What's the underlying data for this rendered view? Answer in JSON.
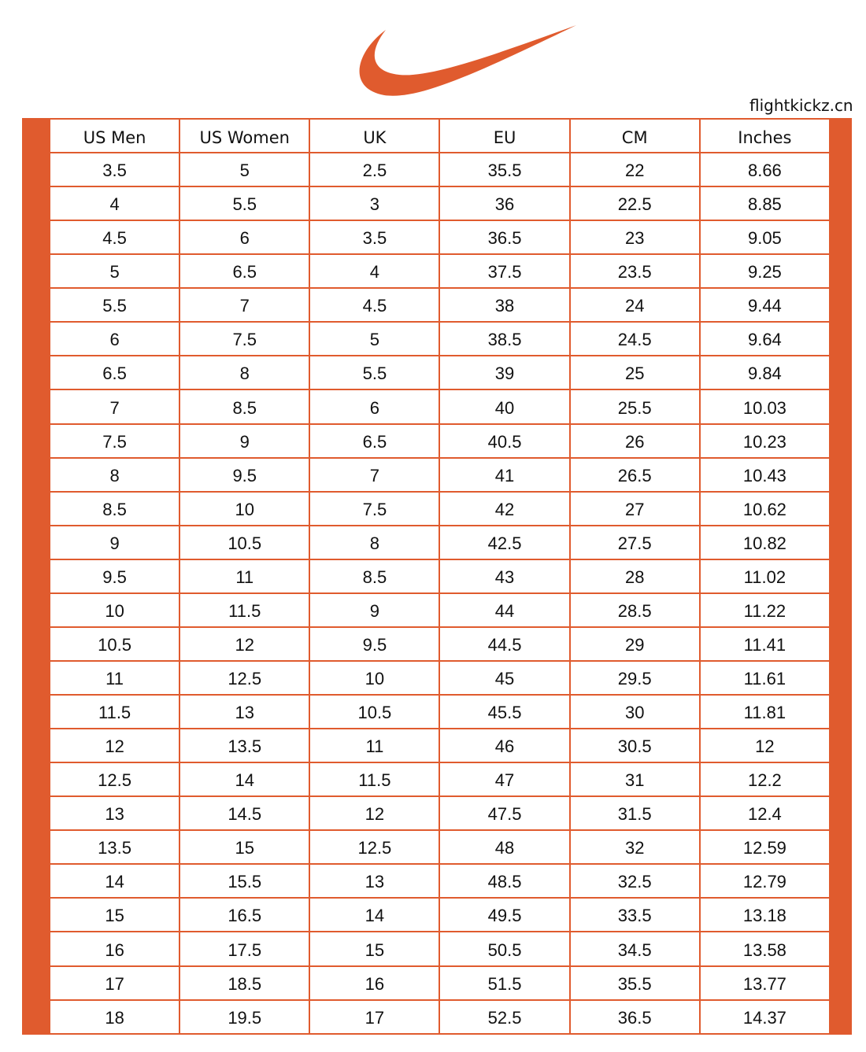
{
  "watermark": "flightkickz.cn",
  "table": {
    "headers": [
      "US Men",
      "US Women",
      "UK",
      "EU",
      "CM",
      "Inches"
    ],
    "rows": [
      [
        "3.5",
        "5",
        "2.5",
        "35.5",
        "22",
        "8.66"
      ],
      [
        "4",
        "5.5",
        "3",
        "36",
        "22.5",
        "8.85"
      ],
      [
        "4.5",
        "6",
        "3.5",
        "36.5",
        "23",
        "9.05"
      ],
      [
        "5",
        "6.5",
        "4",
        "37.5",
        "23.5",
        "9.25"
      ],
      [
        "5.5",
        "7",
        "4.5",
        "38",
        "24",
        "9.44"
      ],
      [
        "6",
        "7.5",
        "5",
        "38.5",
        "24.5",
        "9.64"
      ],
      [
        "6.5",
        "8",
        "5.5",
        "39",
        "25",
        "9.84"
      ],
      [
        "7",
        "8.5",
        "6",
        "40",
        "25.5",
        "10.03"
      ],
      [
        "7.5",
        "9",
        "6.5",
        "40.5",
        "26",
        "10.23"
      ],
      [
        "8",
        "9.5",
        "7",
        "41",
        "26.5",
        "10.43"
      ],
      [
        "8.5",
        "10",
        "7.5",
        "42",
        "27",
        "10.62"
      ],
      [
        "9",
        "10.5",
        "8",
        "42.5",
        "27.5",
        "10.82"
      ],
      [
        "9.5",
        "11",
        "8.5",
        "43",
        "28",
        "11.02"
      ],
      [
        "10",
        "11.5",
        "9",
        "44",
        "28.5",
        "11.22"
      ],
      [
        "10.5",
        "12",
        "9.5",
        "44.5",
        "29",
        "11.41"
      ],
      [
        "11",
        "12.5",
        "10",
        "45",
        "29.5",
        "11.61"
      ],
      [
        "11.5",
        "13",
        "10.5",
        "45.5",
        "30",
        "11.81"
      ],
      [
        "12",
        "13.5",
        "11",
        "46",
        "30.5",
        "12"
      ],
      [
        "12.5",
        "14",
        "11.5",
        "47",
        "31",
        "12.2"
      ],
      [
        "13",
        "14.5",
        "12",
        "47.5",
        "31.5",
        "12.4"
      ],
      [
        "13.5",
        "15",
        "12.5",
        "48",
        "32",
        "12.59"
      ],
      [
        "14",
        "15.5",
        "13",
        "48.5",
        "32.5",
        "12.79"
      ],
      [
        "15",
        "16.5",
        "14",
        "49.5",
        "33.5",
        "13.18"
      ],
      [
        "16",
        "17.5",
        "15",
        "50.5",
        "34.5",
        "13.58"
      ],
      [
        "17",
        "18.5",
        "16",
        "51.5",
        "35.5",
        "13.77"
      ],
      [
        "18",
        "19.5",
        "17",
        "52.5",
        "36.5",
        "14.37"
      ]
    ]
  }
}
